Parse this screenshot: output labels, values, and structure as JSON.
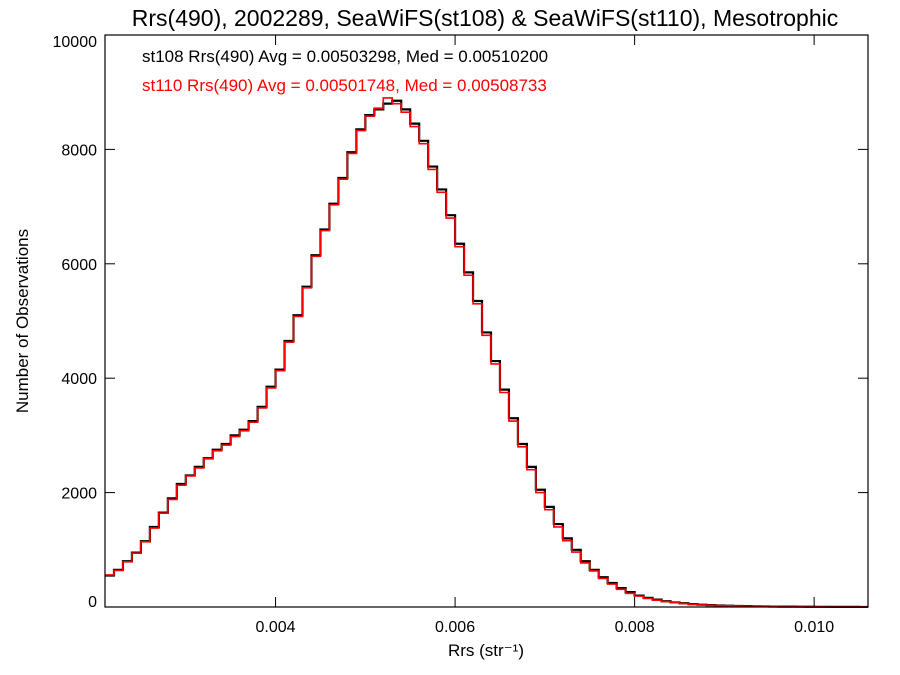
{
  "chart_data": {
    "type": "line",
    "step": true,
    "title": "Rrs(490), 2002289, SeaWiFS(st108) & SeaWiFS(st110), Mesotrophic",
    "xlabel": "Rrs (str⁻¹)",
    "ylabel": "Number of Observations",
    "xlim": [
      0.0021,
      0.0106
    ],
    "ylim": [
      0,
      10000
    ],
    "grid": false,
    "legend_position": "top-left",
    "x_ticks": [
      0.004,
      0.006,
      0.008,
      0.01
    ],
    "x_tick_labels": [
      "0.004",
      "0.006",
      "0.008",
      "0.010"
    ],
    "y_ticks": [
      0,
      2000,
      4000,
      6000,
      8000,
      10000
    ],
    "y_tick_labels": [
      "0",
      "2000",
      "4000",
      "6000",
      "8000",
      "10000"
    ],
    "x": [
      0.0021,
      0.0022,
      0.0023,
      0.0024,
      0.0025,
      0.0026,
      0.0027,
      0.0028,
      0.0029,
      0.003,
      0.0031,
      0.0032,
      0.0033,
      0.0034,
      0.0035,
      0.0036,
      0.0037,
      0.0038,
      0.0039,
      0.004,
      0.0041,
      0.0042,
      0.0043,
      0.0044,
      0.0045,
      0.0046,
      0.0047,
      0.0048,
      0.0049,
      0.005,
      0.0051,
      0.0052,
      0.0053,
      0.0054,
      0.0055,
      0.0056,
      0.0057,
      0.0058,
      0.0059,
      0.006,
      0.0061,
      0.0062,
      0.0063,
      0.0064,
      0.0065,
      0.0066,
      0.0067,
      0.0068,
      0.0069,
      0.007,
      0.0071,
      0.0072,
      0.0073,
      0.0074,
      0.0075,
      0.0076,
      0.0077,
      0.0078,
      0.0079,
      0.008,
      0.0081,
      0.0082,
      0.0083,
      0.0084,
      0.0085,
      0.0086,
      0.0087,
      0.0088,
      0.0089,
      0.009,
      0.0091,
      0.0092,
      0.0093,
      0.0094,
      0.0095,
      0.0096,
      0.0097,
      0.0098,
      0.0099,
      0.01,
      0.0101,
      0.0102,
      0.0103,
      0.0104,
      0.0105,
      0.0106
    ],
    "series": [
      {
        "name": "st108",
        "color": "#000000",
        "legend": "st108 Rrs(490) Avg = 0.00503298, Med = 0.00510200",
        "values": [
          550,
          650,
          800,
          950,
          1150,
          1400,
          1650,
          1900,
          2150,
          2300,
          2450,
          2600,
          2750,
          2850,
          3000,
          3100,
          3250,
          3500,
          3850,
          4150,
          4650,
          5100,
          5600,
          6150,
          6600,
          7050,
          7500,
          7950,
          8350,
          8600,
          8700,
          8800,
          8850,
          8700,
          8450,
          8150,
          7700,
          7300,
          6850,
          6350,
          5850,
          5350,
          4800,
          4300,
          3800,
          3300,
          2850,
          2450,
          2050,
          1750,
          1450,
          1200,
          1000,
          800,
          650,
          520,
          420,
          330,
          260,
          200,
          160,
          130,
          100,
          80,
          65,
          50,
          40,
          33,
          27,
          22,
          18,
          15,
          12,
          10,
          8,
          7,
          6,
          5,
          4,
          3,
          3,
          2,
          2,
          2,
          1,
          1
        ]
      },
      {
        "name": "st110",
        "color": "#ff0000",
        "legend": "st110 Rrs(490) Avg = 0.00501748, Med = 0.00508733",
        "values": [
          560,
          640,
          790,
          940,
          1140,
          1380,
          1640,
          1880,
          2130,
          2290,
          2430,
          2590,
          2730,
          2830,
          2980,
          3080,
          3230,
          3480,
          3830,
          4130,
          4630,
          5080,
          5580,
          6130,
          6580,
          7030,
          7480,
          7930,
          8330,
          8580,
          8720,
          8900,
          8800,
          8650,
          8400,
          8100,
          7650,
          7250,
          6800,
          6300,
          5800,
          5300,
          4750,
          4250,
          3750,
          3250,
          2800,
          2400,
          2000,
          1700,
          1400,
          1160,
          960,
          770,
          630,
          500,
          400,
          310,
          240,
          190,
          150,
          120,
          95,
          75,
          60,
          47,
          37,
          30,
          25,
          20,
          16,
          13,
          11,
          9,
          7,
          6,
          5,
          4,
          3,
          3,
          2,
          2,
          2,
          1,
          1,
          1
        ]
      }
    ]
  }
}
